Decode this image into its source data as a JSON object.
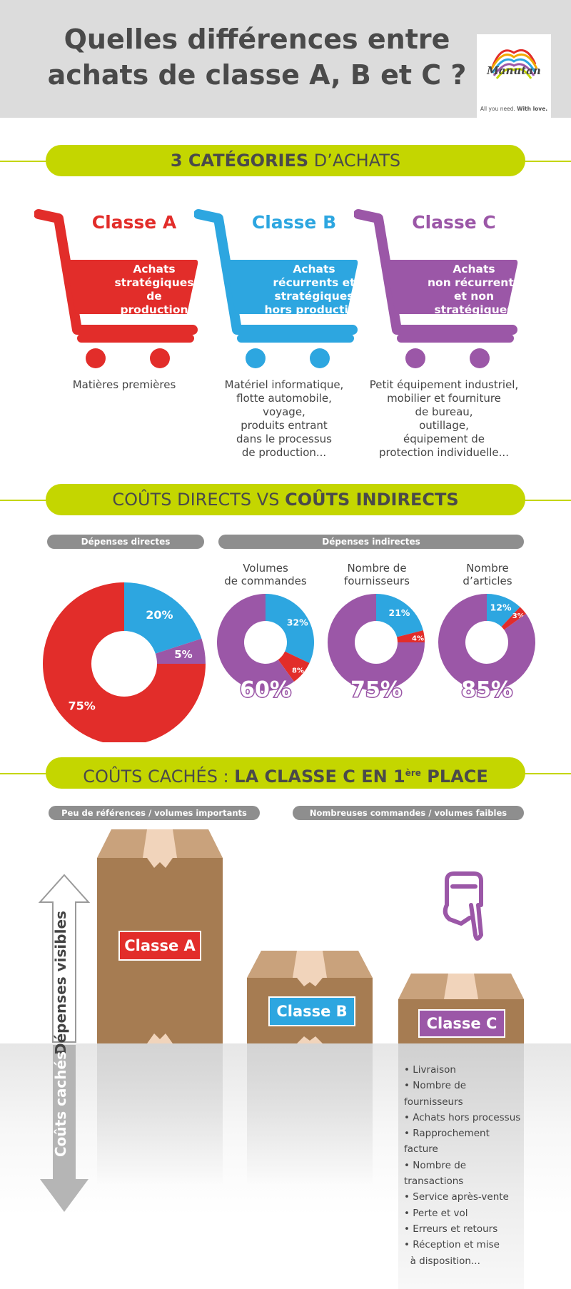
{
  "header": {
    "title_line1": "Quelles différences entre",
    "title_line2": "achats de classe A, B et C ?",
    "logo_text": "Manutan",
    "logo_tagline_plain": "All you need. ",
    "logo_tagline_bold": "With love."
  },
  "colors": {
    "lime": "#c4d600",
    "red": "#e22d2a",
    "blue": "#2da6e0",
    "purple": "#9b57a7",
    "gray_pill": "#8e8e8e",
    "box_brown": "#a67c52"
  },
  "section1": {
    "title_bold": "3 CATÉGORIES",
    "title_rest": " D’ACHATS",
    "carts": [
      {
        "class": "Classe A",
        "lines": [
          "Achats",
          "stratégiques",
          "de",
          "production"
        ],
        "color": "#e22d2a",
        "desc": [
          "Matières premières"
        ]
      },
      {
        "class": "Classe B",
        "lines": [
          "Achats",
          "récurrents et",
          "stratégiques",
          "hors production"
        ],
        "color": "#2da6e0",
        "desc": [
          "Matériel informatique,",
          "flotte automobile,",
          "voyage,",
          "produits entrant",
          "dans le processus",
          "de production..."
        ]
      },
      {
        "class": "Classe C",
        "lines": [
          "Achats",
          "non récurrents",
          "et non",
          "stratégiques"
        ],
        "color": "#9b57a7",
        "desc": [
          "Petit équipement industriel,",
          "mobilier et fourniture",
          "de bureau,",
          "outillage,",
          "équipement de",
          "protection individuelle..."
        ]
      }
    ]
  },
  "section2": {
    "title_rest": "COÛTS DIRECTS VS ",
    "title_bold": "COÛTS INDIRECTS",
    "pill_direct": "Dépenses directes",
    "pill_indirect": "Dépenses indirectes",
    "metrics": [
      {
        "label_line1": "Volumes",
        "label_line2": "de commandes"
      },
      {
        "label_line1": "Nombre de",
        "label_line2": "fournisseurs"
      },
      {
        "label_line1": "Nombre",
        "label_line2": "d’articles"
      }
    ]
  },
  "chart_data": [
    {
      "type": "pie",
      "title": "Dépenses directes",
      "slices": [
        {
          "label": "Classe A",
          "value": 75,
          "display": "75%",
          "color": "#e22d2a"
        },
        {
          "label": "Classe B",
          "value": 20,
          "display": "20%",
          "color": "#2da6e0"
        },
        {
          "label": "Classe C",
          "value": 5,
          "display": "5%",
          "color": "#9b57a7"
        }
      ]
    },
    {
      "type": "pie",
      "title": "Volumes de commandes",
      "slices": [
        {
          "label": "Classe A",
          "value": 8,
          "display": "8%",
          "color": "#e22d2a"
        },
        {
          "label": "Classe B",
          "value": 32,
          "display": "32%",
          "color": "#2da6e0"
        },
        {
          "label": "Classe C",
          "value": 60,
          "display": "60%",
          "color": "#9b57a7"
        }
      ]
    },
    {
      "type": "pie",
      "title": "Nombre de fournisseurs",
      "slices": [
        {
          "label": "Classe A",
          "value": 4,
          "display": "4%",
          "color": "#e22d2a"
        },
        {
          "label": "Classe B",
          "value": 21,
          "display": "21%",
          "color": "#2da6e0"
        },
        {
          "label": "Classe C",
          "value": 75,
          "display": "75%",
          "color": "#9b57a7"
        }
      ]
    },
    {
      "type": "pie",
      "title": "Nombre d’articles",
      "slices": [
        {
          "label": "Classe A",
          "value": 3,
          "display": "3%",
          "color": "#e22d2a"
        },
        {
          "label": "Classe B",
          "value": 12,
          "display": "12%",
          "color": "#2da6e0"
        },
        {
          "label": "Classe C",
          "value": 85,
          "display": "85%",
          "color": "#9b57a7"
        }
      ]
    }
  ],
  "section3": {
    "title_rest": "COÛTS CACHÉS : ",
    "title_bold": "LA CLASSE C EN 1",
    "title_sup": "ère",
    "title_bold_end": " PLACE",
    "pill_left": "Peu de références / volumes importants",
    "pill_right": "Nombreuses commandes / volumes faibles",
    "axis_up": "Dépenses visibles",
    "axis_down": "Coûts cachés",
    "boxes": [
      {
        "label": "Classe A",
        "color": "#e22d2a"
      },
      {
        "label": "Classe B",
        "color": "#2da6e0"
      },
      {
        "label": "Classe C",
        "color": "#9b57a7"
      }
    ],
    "hidden_costs": [
      "Livraison",
      "Nombre de fournisseurs",
      "Achats hors processus",
      "Rapprochement facture",
      "Nombre de transactions",
      "Service après-vente",
      "Perte et vol",
      "Erreurs et retours",
      "Réception et mise",
      "à disposition..."
    ]
  }
}
